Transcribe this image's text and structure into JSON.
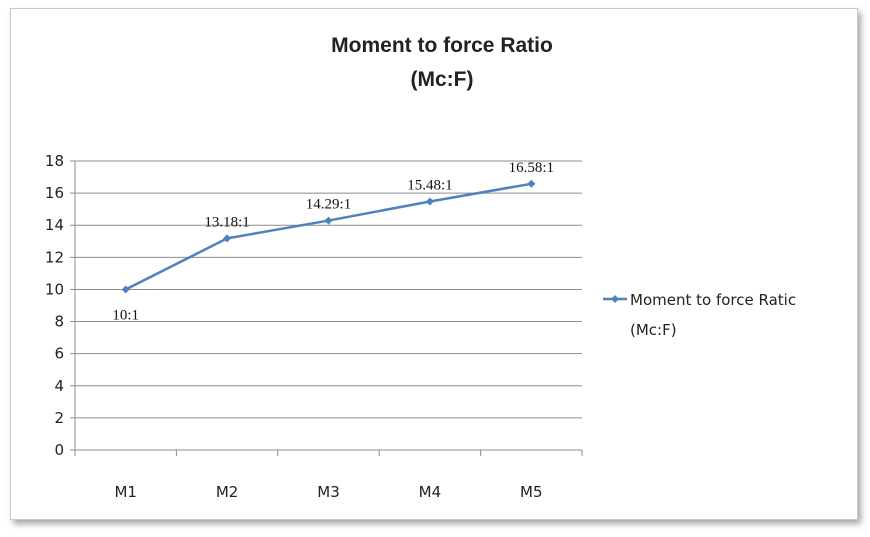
{
  "chart_data": {
    "type": "line",
    "title": [
      "Moment to force Ratio",
      "(Mc:F)"
    ],
    "categories": [
      "M1",
      "M2",
      "M3",
      "M4",
      "M5"
    ],
    "series": [
      {
        "name": [
          "Moment to force Ratic",
          "(Mc:F)"
        ],
        "values": [
          10,
          13.18,
          14.29,
          15.48,
          16.58
        ],
        "data_labels": [
          "10:1",
          "13.18:1",
          "14.29:1",
          "15.48:1",
          "16.58:1"
        ],
        "color": "#4f81bd"
      }
    ],
    "ylim": [
      0,
      18
    ],
    "yticks": [
      "0",
      "2",
      "4",
      "6",
      "8",
      "10",
      "12",
      "14",
      "16",
      "18"
    ],
    "grid": true,
    "legend": "right"
  }
}
